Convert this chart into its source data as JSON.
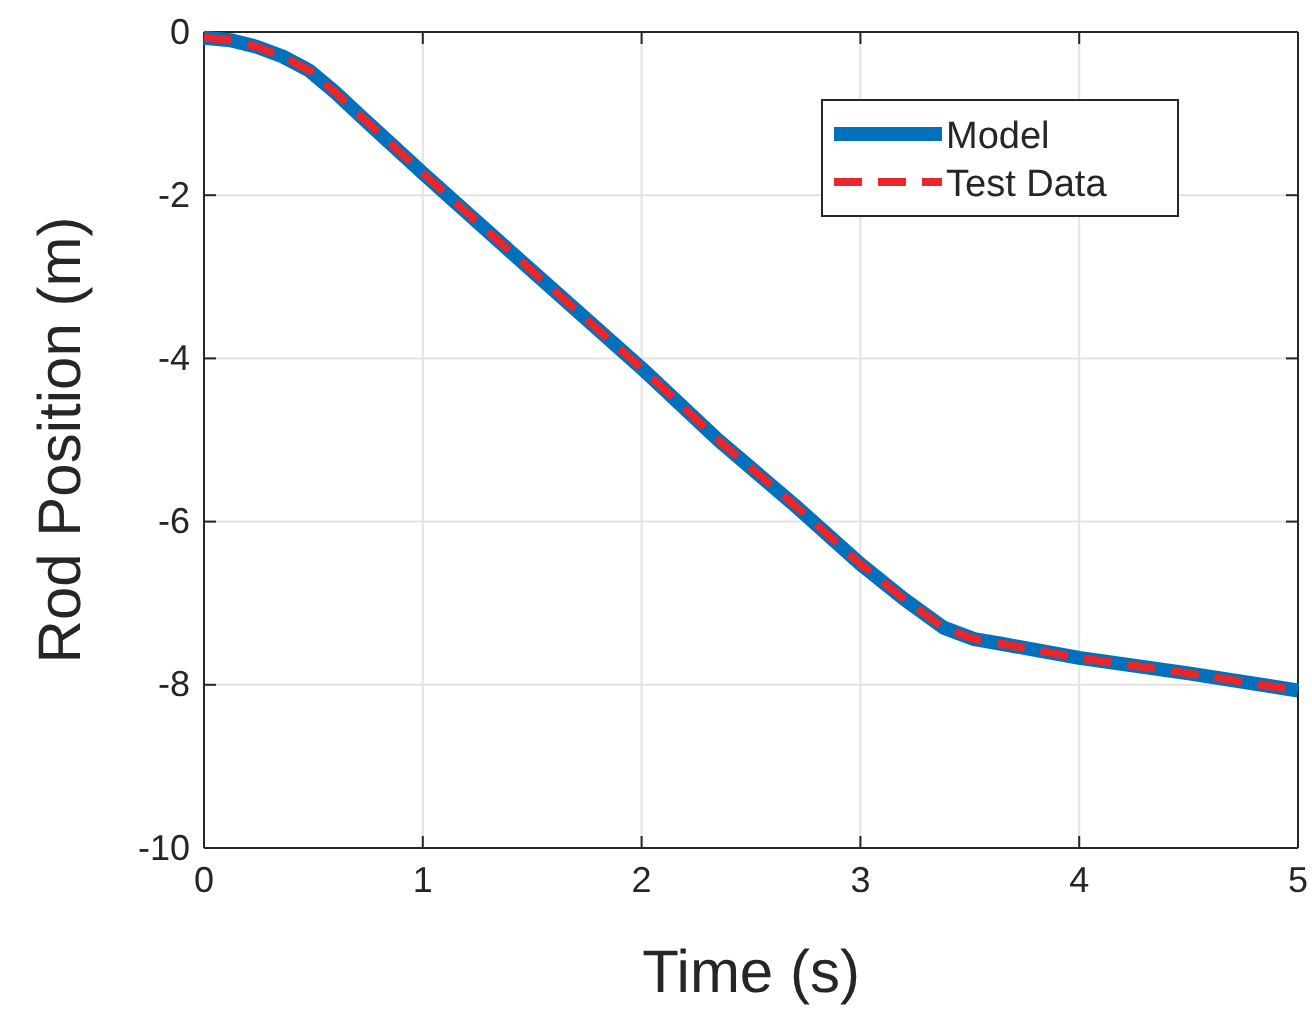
{
  "chart_data": {
    "type": "line",
    "xlabel": "Time (s)",
    "ylabel": "Rod Position (m)",
    "x": [
      0,
      0.12,
      0.24,
      0.36,
      0.48,
      0.6,
      0.72,
      0.85,
      1,
      1.5,
      2,
      2.35,
      2.7,
      3,
      3.2,
      3.38,
      3.52,
      3.65,
      4,
      4.5,
      5
    ],
    "series": [
      {
        "name": "Model",
        "color": "#0072bd",
        "line_style": "solid",
        "values": [
          -0.07,
          -0.1,
          -0.18,
          -0.3,
          -0.47,
          -0.74,
          -1.04,
          -1.36,
          -1.73,
          -2.93,
          -4.12,
          -5.0,
          -5.8,
          -6.52,
          -6.95,
          -7.3,
          -7.44,
          -7.5,
          -7.67,
          -7.86,
          -8.07
        ]
      },
      {
        "name": "Test Data",
        "color": "#e8262b",
        "line_style": "dashed",
        "values": [
          -0.07,
          -0.1,
          -0.18,
          -0.3,
          -0.47,
          -0.74,
          -1.04,
          -1.36,
          -1.73,
          -2.93,
          -4.12,
          -5.0,
          -5.8,
          -6.52,
          -6.95,
          -7.3,
          -7.44,
          -7.5,
          -7.67,
          -7.86,
          -8.07
        ]
      }
    ],
    "xlim": [
      0,
      5
    ],
    "xticks": [
      0,
      1,
      2,
      3,
      4,
      5
    ],
    "ylim": [
      -10,
      0
    ],
    "yticks": [
      -10,
      -8,
      -6,
      -4,
      -2,
      0
    ],
    "grid": true,
    "legend": "top right",
    "marker": "none"
  }
}
